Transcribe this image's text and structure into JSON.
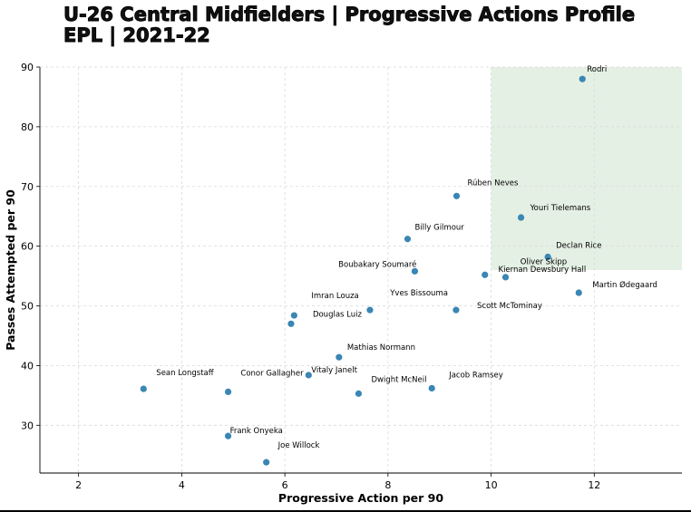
{
  "chart_data": {
    "type": "scatter",
    "title": "U-26 Central Midfielders | Progressive Actions Profile",
    "subtitle": "EPL | 2021-22",
    "xlabel": "Progressive Action per 90",
    "ylabel": "Passes Attempted per 90",
    "xlim": [
      1.25,
      13.7
    ],
    "ylim": [
      22,
      90
    ],
    "xticks": [
      2,
      4,
      6,
      8,
      10,
      12
    ],
    "yticks": [
      30,
      40,
      50,
      60,
      70,
      80,
      90
    ],
    "grid": true,
    "highlight_region": {
      "x": [
        10,
        13.7
      ],
      "y": [
        56,
        90
      ],
      "color": "#e4f0e3"
    },
    "point_color": "#3a86b4",
    "points": [
      {
        "name": "Rodri",
        "x": 11.77,
        "y": 88.0
      },
      {
        "name": "Rúben Neves",
        "x": 9.33,
        "y": 68.4
      },
      {
        "name": "Youri Tielemans",
        "x": 10.58,
        "y": 64.8
      },
      {
        "name": "Billy Gilmour",
        "x": 8.38,
        "y": 61.2
      },
      {
        "name": "Declan Rice",
        "x": 11.1,
        "y": 58.2
      },
      {
        "name": "Oliver Skipp",
        "x": 9.88,
        "y": 55.2
      },
      {
        "name": "Kiernan Dewsbury Hall",
        "x": 10.28,
        "y": 54.8
      },
      {
        "name": "Boubakary Soumaré",
        "x": 8.52,
        "y": 55.8
      },
      {
        "name": "Martin Ødegaard",
        "x": 11.7,
        "y": 52.2
      },
      {
        "name": "Scott McTominay",
        "x": 9.32,
        "y": 49.3
      },
      {
        "name": "Yves Bissouma",
        "x": 7.65,
        "y": 49.3
      },
      {
        "name": "Imran Louza",
        "x": 6.18,
        "y": 48.4
      },
      {
        "name": "Douglas Luiz",
        "x": 6.12,
        "y": 47.0
      },
      {
        "name": "Mathias Normann",
        "x": 7.05,
        "y": 41.4
      },
      {
        "name": "Vitaly Janelt",
        "x": 6.46,
        "y": 38.4
      },
      {
        "name": "Jacob Ramsey",
        "x": 8.85,
        "y": 36.2
      },
      {
        "name": "Dwight McNeil",
        "x": 7.43,
        "y": 35.3
      },
      {
        "name": "Conor Gallagher",
        "x": 4.9,
        "y": 35.6
      },
      {
        "name": "Sean Longstaff",
        "x": 3.26,
        "y": 36.1
      },
      {
        "name": "Frank Onyeka",
        "x": 4.9,
        "y": 28.2
      },
      {
        "name": "Joe Willock",
        "x": 5.64,
        "y": 23.8
      }
    ]
  }
}
